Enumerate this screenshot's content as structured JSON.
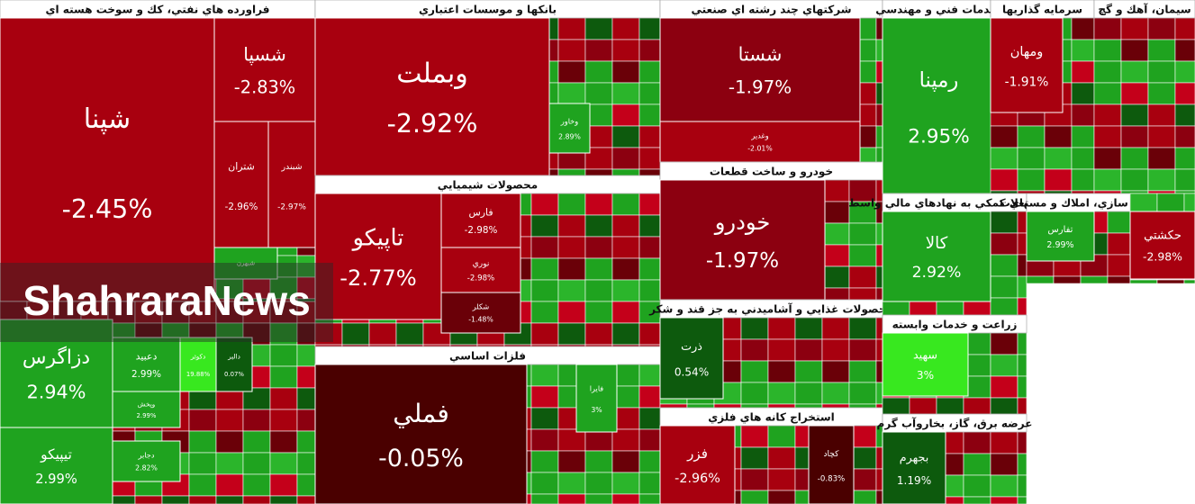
{
  "watermark": "ShahraraNews",
  "sectors": [
    {
      "title": "فراورده هاي نفتي، كك و سوخت هسته اي",
      "tiles": [
        {
          "name": "شپنا",
          "change": "-2.45%"
        },
        {
          "name": "شسپا",
          "change": "-2.83%"
        },
        {
          "name": "شتران",
          "change": "-2.96%"
        },
        {
          "name": "شبندر",
          "change": "-2.97%"
        },
        {
          "name": "شبهرن"
        }
      ]
    },
    {
      "tiles": [
        {
          "name": "دزاگرس",
          "change": "2.94%"
        },
        {
          "name": "تيپيكو",
          "change": "2.99%"
        },
        {
          "name": "دعبيد",
          "change": "2.99%"
        },
        {
          "name": "دكوثر",
          "change": "19.88%"
        },
        {
          "name": "دالبر",
          "change": "0.07%"
        },
        {
          "name": "وپخش",
          "change": "2.99%"
        },
        {
          "name": "دجابر",
          "change": "2.82%"
        }
      ]
    },
    {
      "title": "بانكها و موسسات اعتباري",
      "tiles": [
        {
          "name": "وبملت",
          "change": "-2.92%"
        },
        {
          "name": "وخاور",
          "change": "2.89%"
        }
      ]
    },
    {
      "title": "محصولات شيميايي",
      "tiles": [
        {
          "name": "تاپيكو",
          "change": "-2.77%"
        },
        {
          "name": "فارس",
          "change": "-2.98%"
        },
        {
          "name": "نوري",
          "change": "-2.98%"
        },
        {
          "name": "شكلر",
          "change": "-1.48%"
        }
      ]
    },
    {
      "title": "فلزات اساسي",
      "tiles": [
        {
          "name": "فملي",
          "change": "-0.05%"
        },
        {
          "name": "فايرا",
          "change": "3%"
        }
      ]
    },
    {
      "title": "شركتهاي چند رشته اي صنعتي",
      "tiles": [
        {
          "name": "شستا",
          "change": "-1.97%"
        },
        {
          "name": "وغدير",
          "change": "-2.01%"
        }
      ]
    },
    {
      "title": "خودرو و ساخت قطعات",
      "tiles": [
        {
          "name": "خودرو",
          "change": "-1.97%"
        }
      ]
    },
    {
      "title": "محصولات غذايي و آشاميدني به جز قند و شكر",
      "tiles": [
        {
          "name": "ذرت",
          "change": "0.54%"
        }
      ]
    },
    {
      "title": "استخراج كانه هاي فلزي",
      "tiles": [
        {
          "name": "فزر",
          "change": "-2.96%"
        },
        {
          "name": "كچاد",
          "change": "-0.83%"
        }
      ]
    },
    {
      "title": "خدمات فني و مهندسي",
      "tiles": [
        {
          "name": "رمپنا",
          "change": "2.95%"
        }
      ]
    },
    {
      "title": "سرمايه گذاريها",
      "tiles": [
        {
          "name": "ومهان",
          "change": "-1.91%"
        }
      ]
    },
    {
      "title": "سيمان، آهك و گچ",
      "tiles": []
    },
    {
      "title": "فعاليتهاي كمكي به نهادهاي مالي واسط",
      "tiles": [
        {
          "name": "كالا",
          "change": "2.92%"
        }
      ]
    },
    {
      "title": "انبوه سازي، املاك و مستغلات",
      "tiles": [
        {
          "name": "تفارس",
          "change": "2.99%"
        }
      ]
    },
    {
      "tiles": [
        {
          "name": "حكشتي",
          "change": "-2.98%"
        }
      ]
    },
    {
      "title": "زراعت و خدمات وابسته",
      "tiles": [
        {
          "name": "سهيد",
          "change": "3%"
        }
      ]
    },
    {
      "title": "عرضه برق، گاز، بخاروآب گرم",
      "tiles": [
        {
          "name": "بجهرم",
          "change": "1.19%"
        }
      ]
    }
  ]
}
